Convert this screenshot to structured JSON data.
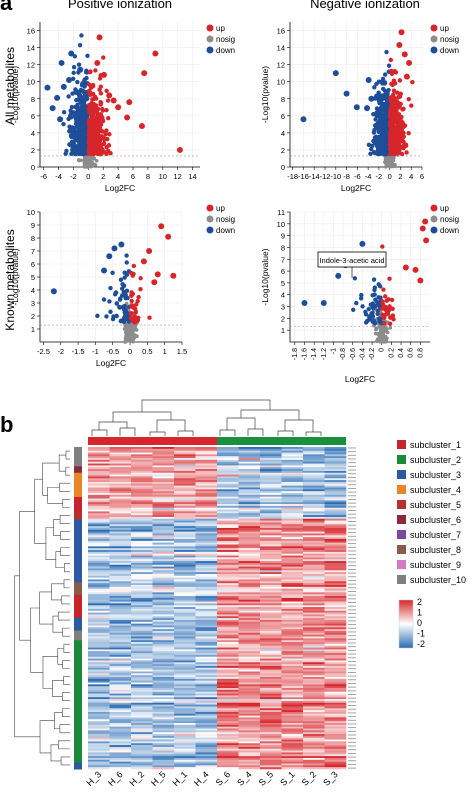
{
  "panel_a": {
    "letter": "a",
    "col_titles": [
      "Positive ionization",
      "Negative ionization"
    ],
    "row_titles": [
      "All metabolites",
      "Known metabolites"
    ],
    "annotation": "Indole-3-acetic acid"
  },
  "panel_b": {
    "letter": "b",
    "samples": [
      "H_3",
      "H_6",
      "H_2",
      "H_5",
      "H_1",
      "H_4",
      "S_6",
      "S_4",
      "S_5",
      "S_1",
      "S_2",
      "S_3"
    ],
    "group_colors": [
      "#d7262b",
      "#1a8f3c"
    ],
    "subclusters": [
      {
        "label": "subcluster_1",
        "color": "#c8242c"
      },
      {
        "label": "subcluster_2",
        "color": "#1a8a3a"
      },
      {
        "label": "subcluster_3",
        "color": "#2c5aa0"
      },
      {
        "label": "subcluster_4",
        "color": "#e8872a"
      },
      {
        "label": "subcluster_5",
        "color": "#b8302e"
      },
      {
        "label": "subcluster_6",
        "color": "#8b2a3a"
      },
      {
        "label": "subcluster_7",
        "color": "#7b4aa0"
      },
      {
        "label": "subcluster_8",
        "color": "#8a5a4a"
      },
      {
        "label": "subcluster_9",
        "color": "#d77bc0"
      },
      {
        "label": "subcluster_10",
        "color": "#808080"
      }
    ],
    "colorscale": {
      "ticks": [
        "2",
        "1",
        "0",
        "-1",
        "-2"
      ],
      "low": "#2a6db5",
      "mid": "#ffffff",
      "high": "#d7262b"
    }
  },
  "colors": {
    "up": "#d7262b",
    "nosig": "#8c8c8c",
    "down": "#1f4e99"
  },
  "chart_data": [
    {
      "type": "scatter",
      "panel": "positive-all",
      "xlabel": "Log2FC",
      "ylabel": "-Log10(pvalue)",
      "xlim": [
        -6.5,
        15
      ],
      "ylim": [
        0,
        17
      ],
      "xticks": [
        -6,
        -4,
        -2,
        0,
        2,
        4,
        6,
        8,
        10,
        12,
        14
      ],
      "yticks": [
        0,
        2,
        4,
        6,
        8,
        10,
        12,
        14,
        16
      ],
      "legend": [
        "up",
        "nosig",
        "down"
      ],
      "series": [
        {
          "name": "up",
          "points": [
            [
              1.5,
              15.2
            ],
            [
              9,
              13.3
            ],
            [
              7.5,
              11
            ],
            [
              12.3,
              2
            ],
            [
              2.8,
              8.4
            ],
            [
              3.4,
              7.8
            ],
            [
              4,
              7
            ],
            [
              5.5,
              7.6
            ],
            [
              7.2,
              4.8
            ],
            [
              5.2,
              5.8
            ],
            [
              1.2,
              12.2
            ],
            [
              2.1,
              10.8
            ]
          ]
        },
        {
          "name": "down",
          "points": [
            [
              -5.5,
              9.3
            ],
            [
              -3.6,
              12.2
            ],
            [
              -2.3,
              13.3
            ],
            [
              -1.1,
              11.4
            ],
            [
              -4.8,
              6.9
            ],
            [
              -4.2,
              8.1
            ],
            [
              -3.3,
              9.4
            ],
            [
              -2.6,
              10.2
            ],
            [
              -3.8,
              5.6
            ],
            [
              -1.6,
              8.8
            ]
          ]
        }
      ]
    },
    {
      "type": "scatter",
      "panel": "negative-all",
      "xlabel": "Log2FC",
      "ylabel": "-Log10(pvalue)",
      "xlim": [
        -18.5,
        6
      ],
      "ylim": [
        0,
        17
      ],
      "xticks": [
        -18,
        -16,
        -14,
        -12,
        -10,
        -8,
        -6,
        -4,
        -2,
        0,
        2,
        4,
        6
      ],
      "yticks": [
        0,
        2,
        4,
        6,
        8,
        10,
        12,
        14,
        16
      ],
      "legend": [
        "up",
        "nosig",
        "down"
      ],
      "series": [
        {
          "name": "up",
          "points": [
            [
              2.2,
              15.8
            ],
            [
              2.8,
              13.2
            ],
            [
              3.6,
              12.2
            ],
            [
              3.2,
              10.6
            ],
            [
              1.8,
              14.3
            ]
          ]
        },
        {
          "name": "down",
          "points": [
            [
              -16,
              5.6
            ],
            [
              -10,
              11
            ],
            [
              -8,
              8.6
            ],
            [
              -6.1,
              7
            ],
            [
              -3.9,
              10.2
            ],
            [
              -3.4,
              8
            ],
            [
              -4.2,
              6.9
            ]
          ]
        }
      ]
    },
    {
      "type": "scatter",
      "panel": "positive-known",
      "xlabel": "Log2FC",
      "ylabel": "-Log10(pvalue)",
      "xlim": [
        -2.6,
        1.5
      ],
      "ylim": [
        0,
        10
      ],
      "xticks": [
        -2.5,
        -2,
        -1.5,
        -1,
        -0.5,
        0,
        0.5,
        1,
        1.5
      ],
      "yticks": [
        1,
        2,
        3,
        4,
        5,
        6,
        7,
        8,
        9,
        10
      ],
      "legend": [
        "up",
        "nosig",
        "down"
      ],
      "series": [
        {
          "name": "up",
          "points": [
            [
              0.9,
              8.9
            ],
            [
              1.1,
              8.1
            ],
            [
              0.55,
              7
            ],
            [
              0.4,
              6.2
            ],
            [
              0.8,
              5.2
            ],
            [
              1.25,
              5.1
            ],
            [
              0.7,
              4.6
            ]
          ]
        },
        {
          "name": "down",
          "points": [
            [
              -2.2,
              3.9
            ],
            [
              -0.45,
              7.2
            ],
            [
              -0.25,
              7.5
            ],
            [
              -0.6,
              6.6
            ],
            [
              -0.75,
              5.5
            ]
          ]
        }
      ]
    },
    {
      "type": "scatter",
      "panel": "negative-known",
      "xlabel": "Log2FC",
      "ylabel": "-Log10(pvalue)",
      "xlim": [
        -1.9,
        1.0
      ],
      "ylim": [
        0,
        11
      ],
      "xticks": [
        -1.8,
        -1.6,
        -1.4,
        -1.2,
        -1,
        -0.8,
        -0.6,
        -0.4,
        -0.2,
        0,
        0.2,
        0.4,
        0.6,
        0.8
      ],
      "yticks": [
        1,
        2,
        3,
        4,
        5,
        6,
        7,
        8,
        9,
        10,
        11
      ],
      "legend": [
        "up",
        "nosig",
        "down"
      ],
      "series": [
        {
          "name": "up",
          "points": [
            [
              0.9,
              10.2
            ],
            [
              0.85,
              9.6
            ],
            [
              0.92,
              8.6
            ],
            [
              0.5,
              6.3
            ],
            [
              0.7,
              6.1
            ],
            [
              0.8,
              5.2
            ]
          ]
        },
        {
          "name": "down",
          "points": [
            [
              -1.6,
              3.3
            ],
            [
              -1.2,
              3.3
            ],
            [
              -0.4,
              8.3
            ],
            [
              -0.75,
              6.5
            ],
            [
              -0.55,
              7.1
            ],
            [
              -0.9,
              5.6
            ]
          ]
        }
      ]
    }
  ]
}
